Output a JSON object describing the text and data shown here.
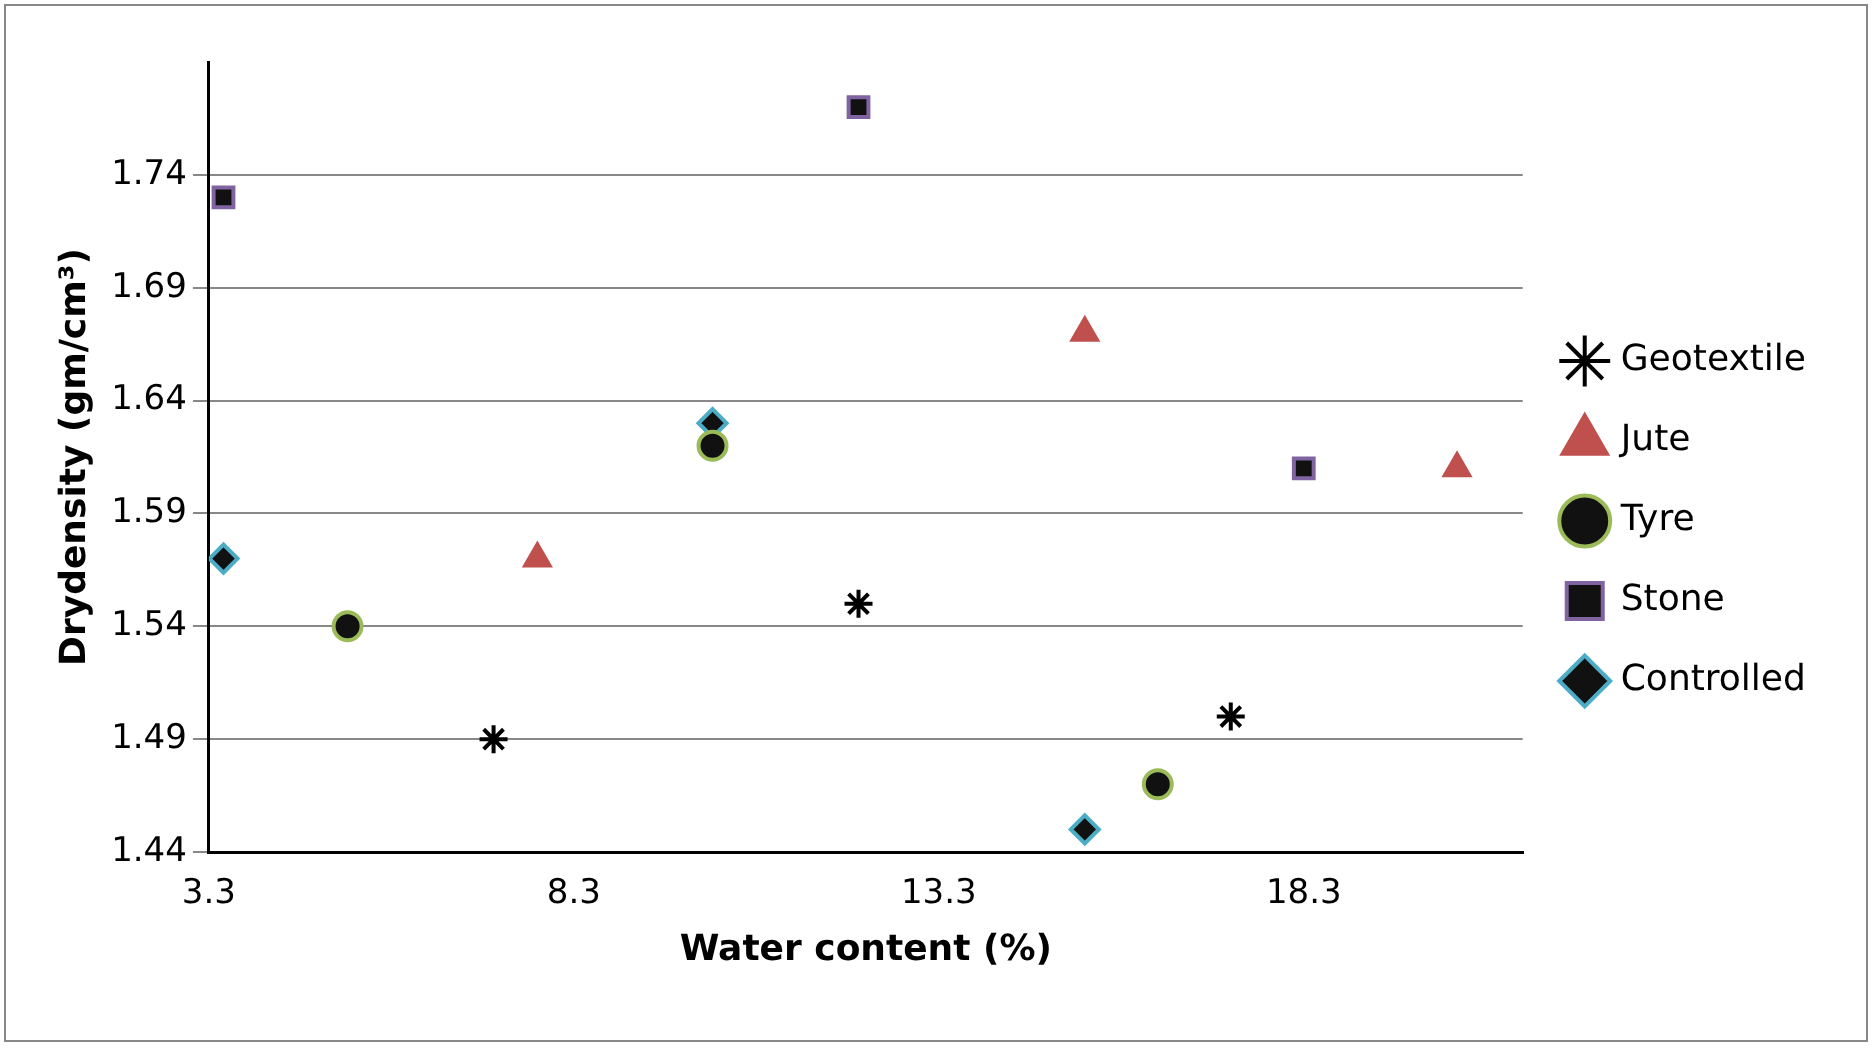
{
  "chart_data": {
    "type": "scatter",
    "xlabel": "Water content (%)",
    "ylabel": "Drydensity (gm/cm³)",
    "xlim": [
      3.3,
      21.3
    ],
    "xticks": [
      3.3,
      8.3,
      13.3,
      18.3
    ],
    "ylim": [
      1.44,
      1.79
    ],
    "yticks": [
      1.44,
      1.49,
      1.54,
      1.59,
      1.64,
      1.69,
      1.74
    ],
    "grid": "y",
    "legend": "right",
    "series": [
      {
        "name": "Geotextile",
        "color": "#000000",
        "marker": "cross",
        "x": [
          7.2,
          12.2,
          17.3
        ],
        "values": [
          1.49,
          1.55,
          1.5
        ]
      },
      {
        "name": "Jute",
        "color": "#c0504d",
        "marker": "triangle",
        "x": [
          7.8,
          15.3,
          20.4
        ],
        "values": [
          1.57,
          1.67,
          1.61
        ]
      },
      {
        "name": "Tyre",
        "color": "#9bbb59",
        "marker": "circle",
        "x": [
          5.2,
          10.2,
          16.3
        ],
        "values": [
          1.54,
          1.62,
          1.47
        ]
      },
      {
        "name": "Stone",
        "color": "#8064a2",
        "marker": "square",
        "x": [
          3.5,
          12.2,
          18.3
        ],
        "values": [
          1.73,
          1.77,
          1.61
        ]
      },
      {
        "name": "Controlled",
        "color": "#4bacc6",
        "marker": "diamond",
        "x": [
          3.5,
          10.2,
          15.3
        ],
        "values": [
          1.57,
          1.63,
          1.45
        ]
      }
    ]
  }
}
